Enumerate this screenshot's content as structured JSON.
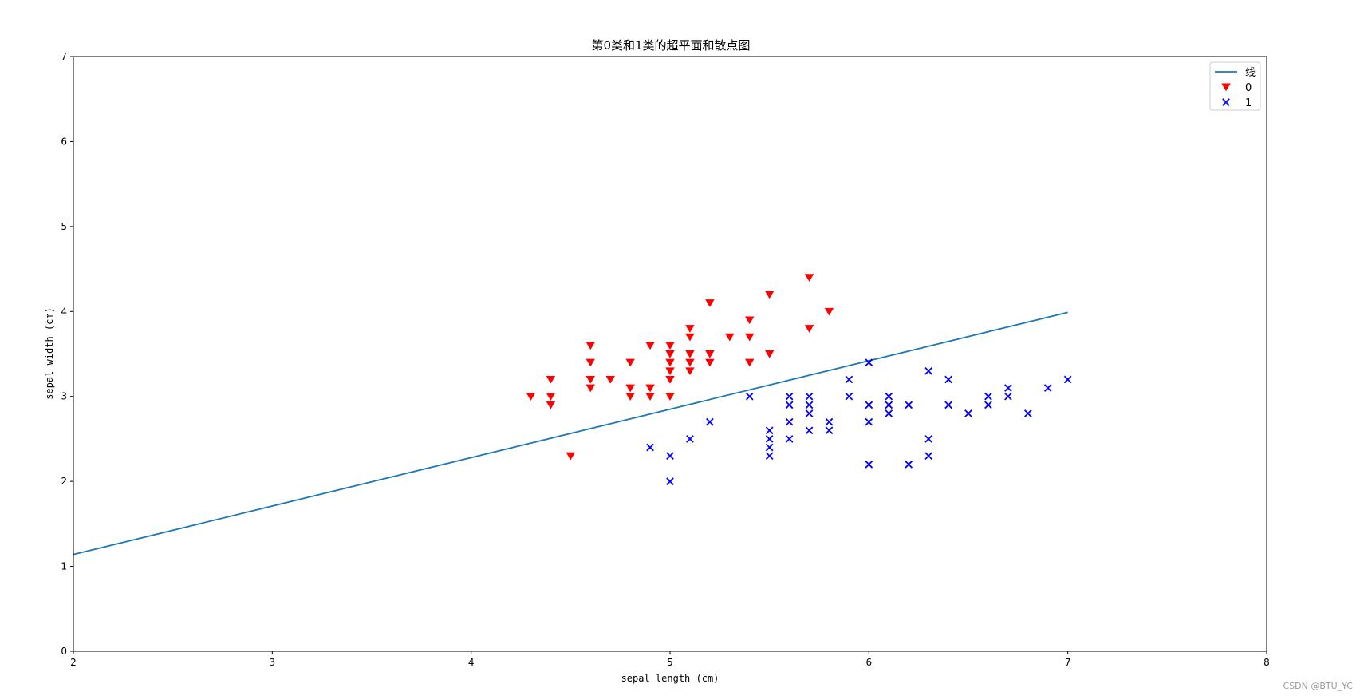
{
  "chart_data": {
    "type": "scatter",
    "title": "第0类和1类的超平面和散点图",
    "xlabel": "sepal length (cm)",
    "ylabel": "sepal width (cm)",
    "xlim": [
      2,
      8
    ],
    "ylim": [
      0,
      7
    ],
    "xticks": [
      2,
      3,
      4,
      5,
      6,
      7,
      8
    ],
    "yticks": [
      0,
      1,
      2,
      3,
      4,
      5,
      6,
      7
    ],
    "grid": false,
    "legend_position": "top-right",
    "line": {
      "name": "线",
      "color": "#1f77b4",
      "points": [
        [
          2,
          1.14
        ],
        [
          7,
          3.99
        ]
      ]
    },
    "series": [
      {
        "name": "0",
        "marker": "triangle-down",
        "color": "#ff0000",
        "points": [
          [
            4.3,
            3.0
          ],
          [
            4.4,
            3.2
          ],
          [
            4.4,
            3.0
          ],
          [
            4.4,
            2.9
          ],
          [
            4.5,
            2.3
          ],
          [
            4.6,
            3.6
          ],
          [
            4.6,
            3.4
          ],
          [
            4.6,
            3.2
          ],
          [
            4.6,
            3.1
          ],
          [
            4.7,
            3.2
          ],
          [
            4.8,
            3.4
          ],
          [
            4.8,
            3.1
          ],
          [
            4.8,
            3.0
          ],
          [
            4.9,
            3.6
          ],
          [
            4.9,
            3.1
          ],
          [
            4.9,
            3.0
          ],
          [
            5.0,
            3.6
          ],
          [
            5.0,
            3.5
          ],
          [
            5.0,
            3.4
          ],
          [
            5.0,
            3.3
          ],
          [
            5.0,
            3.2
          ],
          [
            5.0,
            3.0
          ],
          [
            5.1,
            3.8
          ],
          [
            5.1,
            3.7
          ],
          [
            5.1,
            3.5
          ],
          [
            5.1,
            3.4
          ],
          [
            5.1,
            3.3
          ],
          [
            5.2,
            4.1
          ],
          [
            5.2,
            3.5
          ],
          [
            5.2,
            3.4
          ],
          [
            5.3,
            3.7
          ],
          [
            5.4,
            3.9
          ],
          [
            5.4,
            3.7
          ],
          [
            5.4,
            3.4
          ],
          [
            5.5,
            4.2
          ],
          [
            5.5,
            3.5
          ],
          [
            5.7,
            4.4
          ],
          [
            5.7,
            3.8
          ],
          [
            5.8,
            4.0
          ]
        ]
      },
      {
        "name": "1",
        "marker": "x",
        "color": "#0000ff",
        "points": [
          [
            4.9,
            2.4
          ],
          [
            5.0,
            2.3
          ],
          [
            5.0,
            2.0
          ],
          [
            5.1,
            2.5
          ],
          [
            5.2,
            2.7
          ],
          [
            5.4,
            3.0
          ],
          [
            5.5,
            2.6
          ],
          [
            5.5,
            2.5
          ],
          [
            5.5,
            2.4
          ],
          [
            5.5,
            2.3
          ],
          [
            5.6,
            3.0
          ],
          [
            5.6,
            2.9
          ],
          [
            5.6,
            2.7
          ],
          [
            5.6,
            2.5
          ],
          [
            5.7,
            3.0
          ],
          [
            5.7,
            2.9
          ],
          [
            5.7,
            2.8
          ],
          [
            5.7,
            2.6
          ],
          [
            5.8,
            2.7
          ],
          [
            5.8,
            2.6
          ],
          [
            5.9,
            3.2
          ],
          [
            5.9,
            3.0
          ],
          [
            6.0,
            3.4
          ],
          [
            6.0,
            2.9
          ],
          [
            6.0,
            2.7
          ],
          [
            6.0,
            2.2
          ],
          [
            6.1,
            3.0
          ],
          [
            6.1,
            2.9
          ],
          [
            6.1,
            2.8
          ],
          [
            6.2,
            2.9
          ],
          [
            6.2,
            2.2
          ],
          [
            6.3,
            3.3
          ],
          [
            6.3,
            2.5
          ],
          [
            6.3,
            2.3
          ],
          [
            6.4,
            3.2
          ],
          [
            6.4,
            2.9
          ],
          [
            6.5,
            2.8
          ],
          [
            6.6,
            3.0
          ],
          [
            6.6,
            2.9
          ],
          [
            6.7,
            3.1
          ],
          [
            6.7,
            3.0
          ],
          [
            6.8,
            2.8
          ],
          [
            6.9,
            3.1
          ],
          [
            7.0,
            3.2
          ]
        ]
      }
    ]
  },
  "watermark": "CSDN @BTU_YC"
}
